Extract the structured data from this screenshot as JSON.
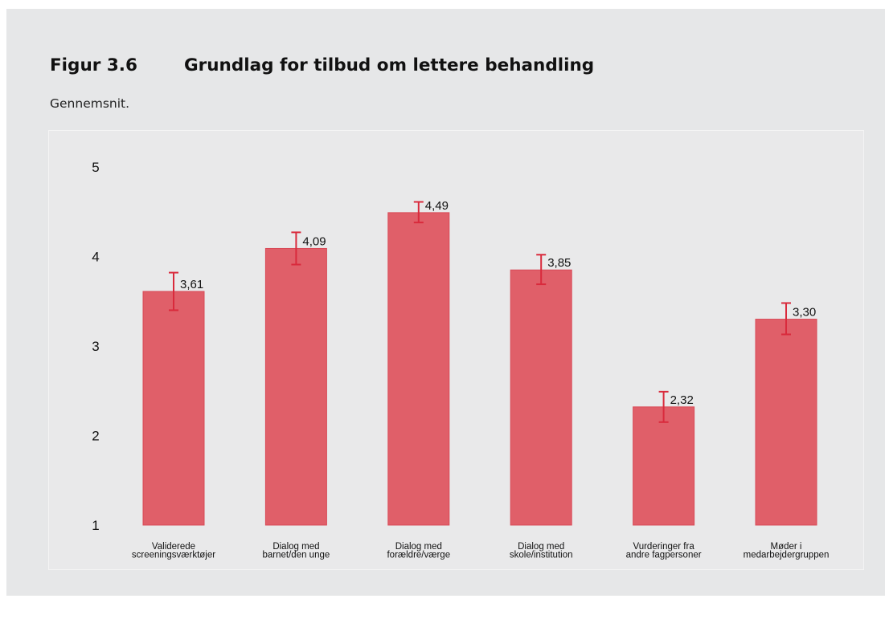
{
  "figure": {
    "number": "Figur 3.6",
    "title": "Grundlag for tilbud om lettere behandling",
    "subtitle": "Gennemsnit."
  },
  "chart_data": {
    "type": "bar",
    "categories": [
      [
        "Validerede",
        "screeningsværktøjer"
      ],
      [
        "Dialog med",
        "barnet/den unge"
      ],
      [
        "Dialog med",
        "forældre/værge"
      ],
      [
        "Dialog med",
        "skole/institution"
      ],
      [
        "Vurderinger fra",
        "andre fagpersoner"
      ],
      [
        "Møder i",
        "medarbejdergruppen"
      ]
    ],
    "values": [
      3.61,
      4.09,
      4.49,
      3.85,
      2.32,
      3.3
    ],
    "value_labels": [
      "3,61",
      "4,09",
      "4,49",
      "3,85",
      "2,32",
      "3,30"
    ],
    "error_bars": [
      {
        "low": 3.4,
        "high": 3.82
      },
      {
        "low": 3.91,
        "high": 4.27
      },
      {
        "low": 4.38,
        "high": 4.61
      },
      {
        "low": 3.69,
        "high": 4.02
      },
      {
        "low": 2.15,
        "high": 2.49
      },
      {
        "low": 3.13,
        "high": 3.48
      }
    ],
    "yticks": [
      "1",
      "2",
      "3",
      "4",
      "5"
    ],
    "ylim": [
      1,
      5
    ],
    "grid": false,
    "legend": "none",
    "colors": {
      "bar_fill": "#e05f69",
      "bar_stroke": "#d94a57",
      "error_bar": "#d92a3c",
      "panel_bg": "#e6e7e8",
      "plot_bg": "#e9e9ea"
    }
  }
}
